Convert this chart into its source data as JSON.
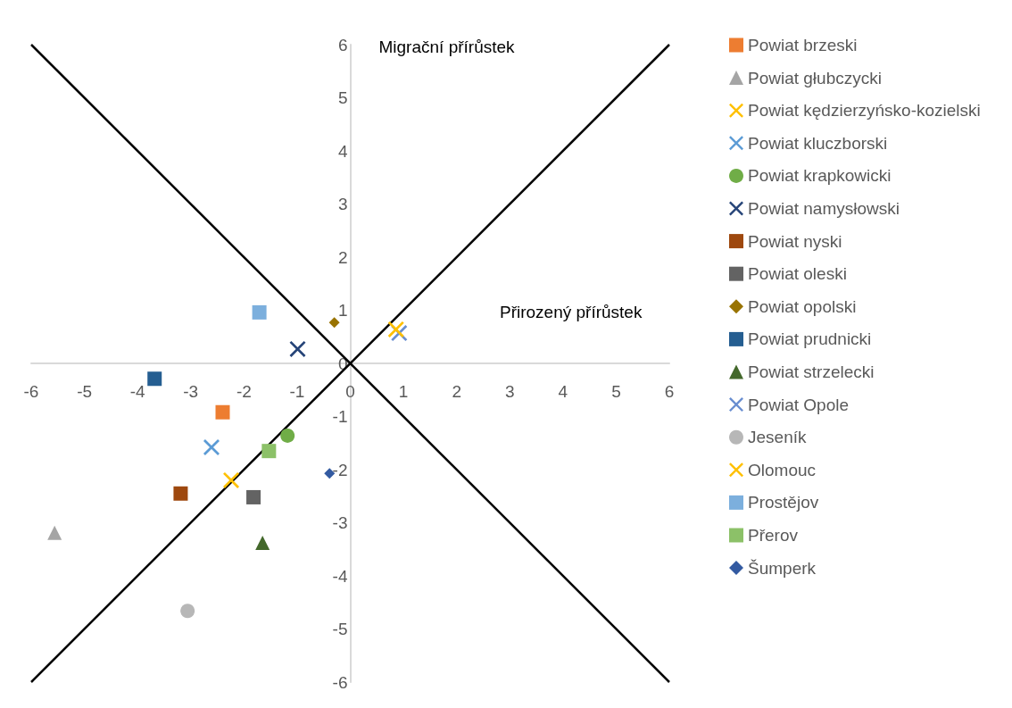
{
  "chart_data": {
    "type": "scatter",
    "xlabel": "Přirozený přírůstek",
    "ylabel": "Migrační přírůstek",
    "xlim": [
      -6,
      6
    ],
    "ylim": [
      -6,
      6
    ],
    "xticks": [
      -6,
      -5,
      -4,
      -3,
      -2,
      -1,
      0,
      1,
      2,
      3,
      4,
      5,
      6
    ],
    "yticks": [
      -6,
      -5,
      -4,
      -3,
      -2,
      -1,
      0,
      1,
      2,
      3,
      4,
      5,
      6
    ],
    "grid": false,
    "legend": "right",
    "series": [
      {
        "name": "Powiat brzeski",
        "color": "#ed7d31",
        "marker": "square",
        "x": [
          -2.4
        ],
        "values": [
          -0.92
        ]
      },
      {
        "name": "Powiat głubczycki",
        "color": "#a5a5a5",
        "marker": "triangle",
        "x": [
          -5.56
        ],
        "values": [
          -3.19
        ]
      },
      {
        "name": "Powiat kędzierzyńsko-kozielski",
        "color": "#ffc000",
        "marker": "cross",
        "x": [
          -2.24
        ],
        "values": [
          -2.2
        ]
      },
      {
        "name": "Powiat kluczborski",
        "color": "#5b9bd5",
        "marker": "cross",
        "x": [
          -2.61
        ],
        "values": [
          -1.58
        ]
      },
      {
        "name": "Powiat krapkowicki",
        "color": "#70ad47",
        "marker": "circle",
        "x": [
          -1.18
        ],
        "values": [
          -1.36
        ]
      },
      {
        "name": "Powiat namysłowski",
        "color": "#264478",
        "marker": "cross",
        "x": [
          -0.99
        ],
        "values": [
          0.27
        ]
      },
      {
        "name": "Powiat nyski",
        "color": "#9e480e",
        "marker": "square",
        "x": [
          -3.19
        ],
        "values": [
          -2.45
        ]
      },
      {
        "name": "Powiat oleski",
        "color": "#636363",
        "marker": "square",
        "x": [
          -1.82
        ],
        "values": [
          -2.52
        ]
      },
      {
        "name": "Powiat opolski",
        "color": "#997300",
        "marker": "diamond",
        "x": [
          -0.3
        ],
        "values": [
          0.77
        ]
      },
      {
        "name": "Powiat prudnicki",
        "color": "#255e91",
        "marker": "square",
        "x": [
          -3.68
        ],
        "values": [
          -0.29
        ]
      },
      {
        "name": "Powiat strzelecki",
        "color": "#43682b",
        "marker": "triangle",
        "x": [
          -1.65
        ],
        "values": [
          -3.38
        ]
      },
      {
        "name": "Powiat Opole",
        "color": "#698ed0",
        "marker": "cross",
        "x": [
          0.92
        ],
        "values": [
          0.57
        ]
      },
      {
        "name": "Jeseník",
        "color": "#b7b7b7",
        "marker": "circle",
        "x": [
          -3.06
        ],
        "values": [
          -4.66
        ]
      },
      {
        "name": "Olomouc",
        "color": "#ffc000",
        "marker": "cross",
        "x": [
          0.86
        ],
        "values": [
          0.64
        ]
      },
      {
        "name": "Prostějov",
        "color": "#7cafdd",
        "marker": "square",
        "x": [
          -1.71
        ],
        "values": [
          0.96
        ]
      },
      {
        "name": "Přerov",
        "color": "#8cc168",
        "marker": "square",
        "x": [
          -1.53
        ],
        "values": [
          -1.65
        ]
      },
      {
        "name": "Šumperk",
        "color": "#335aa1",
        "marker": "diamond",
        "x": [
          -0.39
        ],
        "values": [
          -2.07
        ]
      },
      {
        "type": "line",
        "color": "#000000",
        "marker": "none",
        "x": [
          -6,
          6
        ],
        "values": [
          -6,
          6
        ]
      },
      {
        "type": "line",
        "color": "#000000",
        "marker": "none",
        "x": [
          -6,
          6
        ],
        "values": [
          6,
          -6
        ]
      }
    ]
  }
}
